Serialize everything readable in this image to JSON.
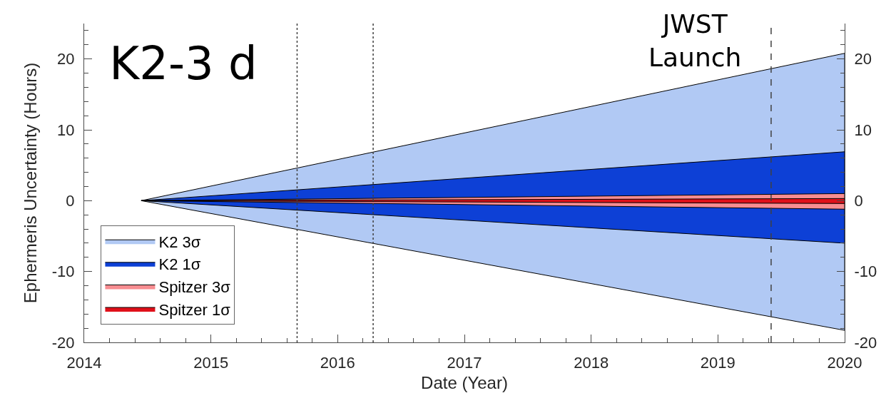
{
  "chart_data": {
    "type": "area",
    "title": "K2-3 d",
    "xlabel": "Date (Year)",
    "ylabel": "Ephermeris Uncertainty (Hours)",
    "x": [
      2014.45,
      2020
    ],
    "series": [
      {
        "name": "K2 3σ",
        "color": "#b1c9f4",
        "values": [
          null,
          null
        ],
        "lower": [
          0,
          -18.3
        ],
        "upper": [
          0,
          20.8
        ]
      },
      {
        "name": "K2 1σ",
        "color": "#0d40d6",
        "values": [
          null,
          null
        ],
        "lower": [
          0,
          -6.0
        ],
        "upper": [
          0,
          6.9
        ]
      },
      {
        "name": "Spitzer 3σ",
        "color": "#f88d91",
        "values": [
          null,
          null
        ],
        "lower": [
          0,
          -1.2
        ],
        "upper": [
          0,
          1.0
        ]
      },
      {
        "name": "Spitzer 1σ",
        "color": "#e0101a",
        "values": [
          null,
          null
        ],
        "lower": [
          0,
          -0.4
        ],
        "upper": [
          0,
          0.3
        ]
      }
    ],
    "xlim": [
      2014,
      2020
    ],
    "xticks": [
      2014,
      {
        "value": 2014.2,
        "label": null
      },
      {
        "value": 2014.4,
        "label": null
      },
      {
        "value": 2014.6,
        "label": null
      },
      {
        "value": 2014.8,
        "label": null
      },
      2015,
      {
        "value": 2015.2,
        "label": null
      },
      {
        "value": 2015.4,
        "label": null
      },
      {
        "value": 2015.6,
        "label": null
      },
      {
        "value": 2015.8,
        "label": null
      },
      2016,
      {
        "value": 2016.2,
        "label": null
      },
      {
        "value": 2016.4,
        "label": null
      },
      {
        "value": 2016.6,
        "label": null
      },
      {
        "value": 2016.8,
        "label": null
      },
      2017,
      {
        "value": 2017.2,
        "label": null
      },
      {
        "value": 2017.4,
        "label": null
      },
      {
        "value": 2017.6,
        "label": null
      },
      {
        "value": 2017.8,
        "label": null
      },
      2018,
      {
        "value": 2018.2,
        "label": null
      },
      {
        "value": 2018.4,
        "label": null
      },
      {
        "value": 2018.6,
        "label": null
      },
      {
        "value": 2018.8,
        "label": null
      },
      2019,
      {
        "value": 2019.2,
        "label": null
      },
      {
        "value": 2019.4,
        "label": null
      },
      {
        "value": 2019.6,
        "label": null
      },
      {
        "value": 2019.8,
        "label": null
      },
      2020
    ],
    "ylim": [
      -20,
      25
    ],
    "yticks": [
      -20,
      {
        "value": -18,
        "label": null
      },
      {
        "value": -16,
        "label": null
      },
      {
        "value": -14,
        "label": null
      },
      {
        "value": -12,
        "label": null
      },
      -10,
      {
        "value": -8,
        "label": null
      },
      {
        "value": -6,
        "label": null
      },
      {
        "value": -4,
        "label": null
      },
      {
        "value": -2,
        "label": null
      },
      0,
      {
        "value": 2,
        "label": null
      },
      {
        "value": 4,
        "label": null
      },
      {
        "value": 6,
        "label": null
      },
      {
        "value": 8,
        "label": null
      },
      10,
      {
        "value": 12,
        "label": null
      },
      {
        "value": 14,
        "label": null
      },
      {
        "value": 16,
        "label": null
      },
      {
        "value": 18,
        "label": null
      },
      20,
      {
        "value": 22,
        "label": null
      },
      {
        "value": 24,
        "label": null
      }
    ],
    "y2lim": [
      -20,
      25
    ],
    "y2ticks": [
      -20,
      {
        "value": -18,
        "label": null
      },
      {
        "value": -16,
        "label": null
      },
      {
        "value": -14,
        "label": null
      },
      {
        "value": -12,
        "label": null
      },
      -10,
      {
        "value": -8,
        "label": null
      },
      {
        "value": -6,
        "label": null
      },
      {
        "value": -4,
        "label": null
      },
      {
        "value": -2,
        "label": null
      },
      0,
      {
        "value": 2,
        "label": null
      },
      {
        "value": 4,
        "label": null
      },
      {
        "value": 6,
        "label": null
      },
      {
        "value": 8,
        "label": null
      },
      10,
      {
        "value": 12,
        "label": null
      },
      {
        "value": 14,
        "label": null
      },
      {
        "value": 16,
        "label": null
      },
      {
        "value": 18,
        "label": null
      },
      20,
      {
        "value": 22,
        "label": null
      },
      {
        "value": 24,
        "label": null
      }
    ],
    "ref_lines": [
      {
        "axis": "x",
        "value": 2015.68,
        "line_style": "dotted",
        "color": "#404040"
      },
      {
        "axis": "x",
        "value": 2016.28,
        "line_style": "dotted",
        "color": "#404040"
      },
      {
        "axis": "x",
        "value": 2019.42,
        "label": "JWST\nLaunch",
        "line_style": "dashed",
        "color": "#404040"
      }
    ],
    "legend": "bottom left"
  }
}
